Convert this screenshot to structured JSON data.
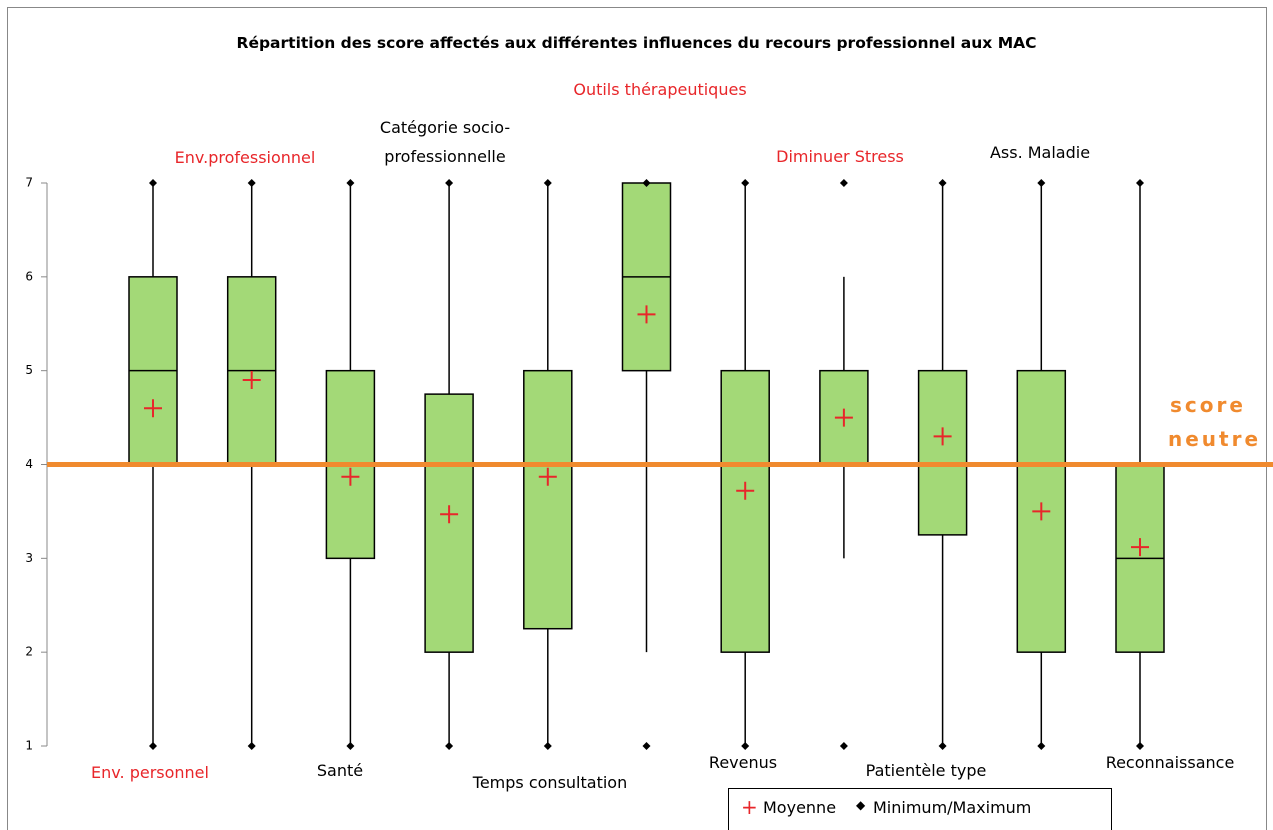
{
  "chart_data": {
    "type": "box",
    "title": "Répartition des score affectés aux différentes influences du recours professionnel aux MAC",
    "categories": [
      "Env. personnel",
      "Env.professionnel",
      "Santé",
      "Catégorie socio-professionnelle",
      "Temps consultation",
      "Outils thérapeutiques",
      "Revenus",
      "Diminuer Stress",
      "Patientèle type",
      "Ass.  Maladie",
      "Reconnaissance"
    ],
    "category_colors": [
      "#e8262a",
      "#e8262a",
      "#000000",
      "#000000",
      "#000000",
      "#e8262a",
      "#000000",
      "#e8262a",
      "#000000",
      "#000000",
      "#000000"
    ],
    "min": [
      1,
      1,
      1,
      1,
      1,
      1,
      1,
      1,
      1,
      1,
      1
    ],
    "whisker_low": [
      1,
      1,
      1,
      1,
      1,
      2,
      1,
      3,
      1,
      1,
      1
    ],
    "q1": [
      4,
      4,
      3,
      2,
      2.25,
      5,
      2,
      4,
      3.25,
      2,
      2
    ],
    "median": [
      5,
      5,
      4,
      4,
      4,
      6,
      4,
      4,
      4,
      4,
      3
    ],
    "q3": [
      6,
      6,
      5,
      4.75,
      5,
      7,
      5,
      5,
      5,
      5,
      4
    ],
    "whisker_high": [
      7,
      7,
      7,
      7,
      7,
      7,
      7,
      6,
      7,
      7,
      7
    ],
    "max": [
      7,
      7,
      7,
      7,
      7,
      7,
      7,
      7,
      7,
      7,
      7
    ],
    "mean": [
      4.6,
      4.9,
      3.87,
      3.47,
      3.87,
      5.6,
      3.72,
      4.5,
      4.3,
      3.5,
      3.12
    ],
    "box_color": "#a3d977",
    "mean_color": "#e8262a",
    "ylim": [
      1,
      7
    ],
    "yticks": [
      1,
      2,
      3,
      4,
      5,
      6,
      7
    ],
    "reference_line": {
      "value": 4,
      "label": "score neutre",
      "color": "#f08a2e"
    },
    "legend": {
      "mean": "Moyenne",
      "minmax": "Minimum/Maximum"
    }
  }
}
